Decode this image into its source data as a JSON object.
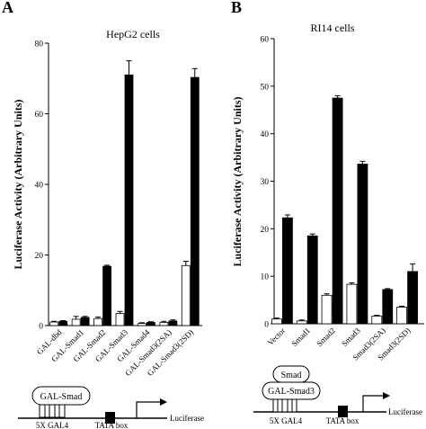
{
  "panels": [
    {
      "letter": "A",
      "title": "HepG2 cells",
      "ylabel": "Luciferase Activity (Arbitrary Units)"
    },
    {
      "letter": "B",
      "title": "RI14 cells",
      "ylabel": "Luciferase Activity (Arbitrary Units)"
    }
  ],
  "chart_data": [
    {
      "type": "bar",
      "title": "HepG2 cells",
      "ylabel": "Luciferase Activity (Arbitrary Units)",
      "xlabel": "",
      "ylim": [
        0,
        80
      ],
      "yticks": [
        0,
        20,
        40,
        60,
        80
      ],
      "categories": [
        "GAL-dbd",
        "GAL-Smad1",
        "GAL-Smad2",
        "GAL-Smad3",
        "GAL-Smad4",
        "GAL-Smad3(2SA)",
        "GAL-Smad3(2SD)"
      ],
      "series": [
        {
          "values": [
            1.0,
            1.8,
            2.0,
            3.4,
            0.6,
            0.9,
            17.0
          ],
          "errors": [
            0.2,
            0.8,
            0.4,
            0.6,
            0.2,
            0.3,
            1.2
          ],
          "fill": "#ffffff"
        },
        {
          "values": [
            1.2,
            2.3,
            16.8,
            71.0,
            0.9,
            1.3,
            70.3
          ],
          "errors": [
            0.2,
            0.3,
            0.3,
            4.0,
            0.2,
            0.3,
            2.5
          ],
          "fill": "#000000"
        }
      ]
    },
    {
      "type": "bar",
      "title": "RI14 cells",
      "ylabel": "Luciferase Activity (Arbitrary Units)",
      "xlabel": "",
      "ylim": [
        0,
        60
      ],
      "yticks": [
        0,
        10,
        20,
        30,
        40,
        50,
        60
      ],
      "categories": [
        "Vector",
        "Smad1",
        "Smad2",
        "Smad3",
        "Smad3(2SA)",
        "Smad3(2SD)"
      ],
      "series": [
        {
          "values": [
            1.0,
            0.6,
            6.0,
            8.3,
            1.6,
            3.5
          ],
          "errors": [
            0.2,
            0.2,
            0.3,
            0.3,
            0.2,
            0.2
          ],
          "fill": "#ffffff"
        },
        {
          "values": [
            22.3,
            18.5,
            47.5,
            33.6,
            7.2,
            11.0
          ],
          "errors": [
            0.6,
            0.4,
            0.5,
            0.6,
            0.2,
            1.6
          ],
          "fill": "#000000"
        }
      ]
    }
  ],
  "schematics": [
    {
      "factors": [
        "GAL-Smad"
      ],
      "repeat": "5X GAL4",
      "tata": "TATA box",
      "reporter": "Luciferase"
    },
    {
      "factors": [
        "GAL-Smad3",
        "Smad"
      ],
      "repeat": "5X GAL4",
      "tata": "TATA box",
      "reporter": "Luciferase"
    }
  ]
}
